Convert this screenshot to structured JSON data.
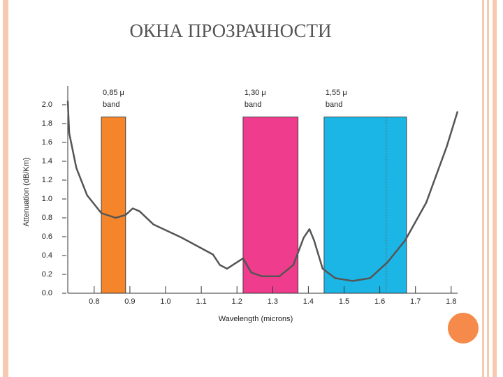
{
  "chart_data": {
    "type": "line",
    "title": "ОКНА ПРОЗРАЧНОСТИ",
    "xlabel": "Wavelength (microns)",
    "ylabel": "Attenuation (dB/Km)",
    "xlim": [
      0.726,
      1.818
    ],
    "ylim": [
      0,
      2.2
    ],
    "xticks": [
      0.8,
      0.9,
      {
        "value": 1.0,
        "label": "1.0"
      },
      1.1,
      1.2,
      1.3,
      1.4,
      1.5,
      1.6,
      1.7,
      1.8
    ],
    "yticks": [
      {
        "value": 0.0,
        "label": "0.0"
      },
      0.2,
      0.4,
      0.6,
      0.8,
      {
        "value": 1.0,
        "label": "1.0"
      },
      1.2,
      1.4,
      1.6,
      1.8,
      {
        "value": 2.0,
        "label": "2.0"
      }
    ],
    "series": [
      {
        "color": "#555555",
        "x": [
          0.726,
          0.73,
          0.75,
          0.78,
          0.82,
          0.86,
          0.888,
          0.908,
          0.927,
          0.966,
          1.045,
          1.133,
          1.152,
          1.172,
          1.217,
          1.24,
          1.27,
          1.319,
          1.358,
          1.387,
          1.403,
          1.416,
          1.44,
          1.475,
          1.524,
          1.573,
          1.622,
          1.671,
          1.73,
          1.788,
          1.818
        ],
        "values": [
          2.04,
          1.7,
          1.33,
          1.04,
          0.85,
          0.8,
          0.83,
          0.9,
          0.87,
          0.73,
          0.59,
          0.41,
          0.3,
          0.26,
          0.37,
          0.22,
          0.18,
          0.18,
          0.3,
          0.59,
          0.68,
          0.56,
          0.26,
          0.16,
          0.13,
          0.16,
          0.33,
          0.56,
          0.96,
          1.56,
          1.93
        ]
      }
    ],
    "bands": [
      {
        "label_lines": [
          "0,85 μ",
          "band"
        ],
        "start": 0.82,
        "end": 0.888,
        "top": 1.87,
        "color": "#f5852a"
      },
      {
        "label_lines": [
          "1,30 μ",
          "band"
        ],
        "start": 1.217,
        "end": 1.371,
        "top": 1.87,
        "color": "#f03c8c"
      },
      {
        "label_lines": [
          "1,55 μ",
          "band"
        ],
        "start": 1.444,
        "end": 1.675,
        "top": 1.87,
        "color": "#1bb6e6"
      }
    ],
    "marker_x": 1.618
  }
}
